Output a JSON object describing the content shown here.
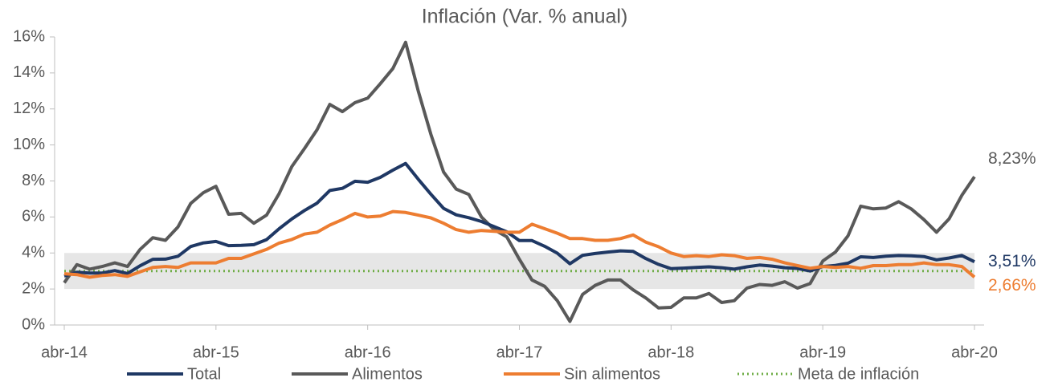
{
  "chart_data": {
    "type": "line",
    "title": "Inflación (Var. % anual)",
    "categories": [
      "abr-14",
      null,
      null,
      null,
      null,
      null,
      null,
      null,
      null,
      null,
      null,
      null,
      "abr-15",
      null,
      null,
      null,
      null,
      null,
      null,
      null,
      null,
      null,
      null,
      null,
      "abr-16",
      null,
      null,
      null,
      null,
      null,
      null,
      null,
      null,
      null,
      null,
      null,
      "abr-17",
      null,
      null,
      null,
      null,
      null,
      null,
      null,
      null,
      null,
      null,
      null,
      "abr-18",
      null,
      null,
      null,
      null,
      null,
      null,
      null,
      null,
      null,
      null,
      null,
      "abr-19",
      null,
      null,
      null,
      null,
      null,
      null,
      null,
      null,
      null,
      null,
      null,
      "abr-20"
    ],
    "ylim": [
      0,
      16
    ],
    "yticks": [
      {
        "value": 0,
        "label": "0%"
      },
      {
        "value": 2,
        "label": "2%"
      },
      {
        "value": 4,
        "label": "4%"
      },
      {
        "value": 6,
        "label": "6%"
      },
      {
        "value": 8,
        "label": "8%"
      },
      {
        "value": 10,
        "label": "10%"
      },
      {
        "value": 12,
        "label": "12%"
      },
      {
        "value": 14,
        "label": "14%"
      },
      {
        "value": 16,
        "label": "16%"
      }
    ],
    "target_range": [
      2,
      4
    ],
    "target_range_color": "#e6e6e6",
    "legend": "bottom",
    "series": [
      {
        "name": "Total",
        "color": "#1f3864",
        "style": "solid",
        "end_label": "3,51%",
        "values": [
          2.72,
          2.93,
          2.89,
          2.89,
          3.02,
          2.86,
          3.29,
          3.65,
          3.66,
          3.82,
          4.36,
          4.56,
          4.64,
          4.41,
          4.42,
          4.46,
          4.74,
          5.35,
          5.89,
          6.36,
          6.77,
          7.47,
          7.59,
          7.98,
          7.93,
          8.2,
          8.6,
          8.97,
          8.1,
          7.27,
          6.48,
          6.12,
          5.96,
          5.75,
          5.47,
          5.18,
          4.69,
          4.69,
          4.37,
          3.99,
          3.4,
          3.87,
          3.97,
          4.05,
          4.12,
          4.09,
          3.69,
          3.37,
          3.13,
          3.16,
          3.2,
          3.23,
          3.18,
          3.1,
          3.23,
          3.33,
          3.27,
          3.18,
          3.14,
          3.0,
          3.25,
          3.31,
          3.43,
          3.79,
          3.75,
          3.82,
          3.86,
          3.84,
          3.8,
          3.62,
          3.72,
          3.86,
          3.51
        ]
      },
      {
        "name": "Alimentos",
        "color": "#595959",
        "style": "solid",
        "end_label": "8,23%",
        "values": [
          2.35,
          3.35,
          3.1,
          3.25,
          3.45,
          3.25,
          4.2,
          4.85,
          4.7,
          5.45,
          6.75,
          7.35,
          7.7,
          6.15,
          6.2,
          5.65,
          6.1,
          7.3,
          8.8,
          9.8,
          10.85,
          12.25,
          11.85,
          12.35,
          12.6,
          13.4,
          14.25,
          15.7,
          13.0,
          10.6,
          8.5,
          7.55,
          7.25,
          6.0,
          5.3,
          4.9,
          3.65,
          2.5,
          2.15,
          1.35,
          0.2,
          1.7,
          2.2,
          2.5,
          2.5,
          1.95,
          1.5,
          0.95,
          0.98,
          1.5,
          1.5,
          1.75,
          1.25,
          1.35,
          2.05,
          2.25,
          2.2,
          2.4,
          2.05,
          2.3,
          3.55,
          4.05,
          4.95,
          6.6,
          6.45,
          6.5,
          6.85,
          6.45,
          5.85,
          5.15,
          5.9,
          7.2,
          8.23
        ]
      },
      {
        "name": "Sin alimentos",
        "color": "#ed7d31",
        "style": "solid",
        "end_label": "2,66%",
        "values": [
          2.85,
          2.8,
          2.65,
          2.75,
          2.8,
          2.7,
          2.95,
          3.2,
          3.25,
          3.2,
          3.45,
          3.45,
          3.45,
          3.7,
          3.7,
          3.95,
          4.2,
          4.55,
          4.75,
          5.05,
          5.15,
          5.55,
          5.85,
          6.2,
          6.0,
          6.05,
          6.3,
          6.25,
          6.1,
          5.95,
          5.65,
          5.3,
          5.15,
          5.25,
          5.2,
          5.15,
          5.15,
          5.6,
          5.35,
          5.1,
          4.8,
          4.8,
          4.7,
          4.7,
          4.8,
          5.0,
          4.6,
          4.35,
          4.0,
          3.8,
          3.85,
          3.8,
          3.9,
          3.85,
          3.7,
          3.75,
          3.65,
          3.45,
          3.3,
          3.15,
          3.25,
          3.2,
          3.25,
          3.15,
          3.3,
          3.3,
          3.35,
          3.35,
          3.45,
          3.35,
          3.35,
          3.25,
          2.66
        ]
      },
      {
        "name": "Meta de inflación",
        "color": "#70ad47",
        "style": "dotted",
        "values": [
          3,
          3,
          3,
          3,
          3,
          3,
          3,
          3,
          3,
          3,
          3,
          3,
          3,
          3,
          3,
          3,
          3,
          3,
          3,
          3,
          3,
          3,
          3,
          3,
          3,
          3,
          3,
          3,
          3,
          3,
          3,
          3,
          3,
          3,
          3,
          3,
          3,
          3,
          3,
          3,
          3,
          3,
          3,
          3,
          3,
          3,
          3,
          3,
          3,
          3,
          3,
          3,
          3,
          3,
          3,
          3,
          3,
          3,
          3,
          3,
          3,
          3,
          3,
          3,
          3,
          3,
          3,
          3,
          3,
          3,
          3,
          3,
          3
        ]
      }
    ]
  }
}
